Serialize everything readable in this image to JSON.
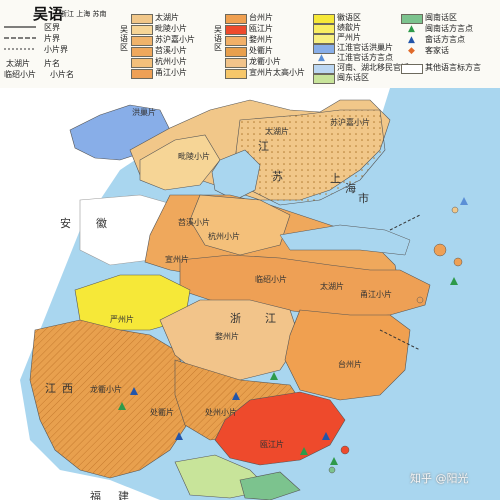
{
  "title": "吴语",
  "subtitle": "浙江 上海 苏南",
  "legend": {
    "line_types": [
      {
        "label": "区界"
      },
      {
        "label": "片界"
      },
      {
        "label": "小片界"
      }
    ],
    "name_types": [
      {
        "label": "太湖片",
        "desc": "片名"
      },
      {
        "label": "临绍小片",
        "desc": "小片名"
      }
    ],
    "group_label": "吴语区",
    "col1": [
      {
        "label": "太湖片",
        "color": "#f1c789"
      },
      {
        "label": "毗陵小片",
        "color": "#f6d596"
      },
      {
        "label": "苏沪嘉小片",
        "color": "#f0b36a"
      },
      {
        "label": "苕溪小片",
        "color": "#efa85c"
      },
      {
        "label": "杭州小片",
        "color": "#f4c07a"
      },
      {
        "label": "甬江小片",
        "color": "#eea055"
      }
    ],
    "col2": [
      {
        "label": "台州片",
        "color": "#f0a050"
      },
      {
        "label": "瓯江片",
        "color": "#ee4a2c"
      },
      {
        "label": "婺州片",
        "color": "#f2b068"
      },
      {
        "label": "处衢片",
        "color": "#e8a04e"
      },
      {
        "label": "龙衢小片",
        "color": "#f2c48a"
      },
      {
        "label": "宣州片太高小片",
        "color": "#f6c76a"
      }
    ],
    "col3": [
      {
        "label": "徽语区",
        "color": "#f6e838"
      },
      {
        "label": "绩歙片",
        "color": "#f9ee62"
      },
      {
        "label": "严州片",
        "color": "#f8f080"
      },
      {
        "label": "江淮官话洪巢片",
        "color": "#88aee8"
      },
      {
        "label": "江淮官话方言点",
        "color": "#a9d3f0"
      },
      {
        "label": "河南、湖北移民官话",
        "color": "#bcd7f2"
      },
      {
        "label": "闽东话区",
        "color": "#c8e49a"
      }
    ],
    "col4": [
      {
        "label": "闽南话区",
        "color": "#7cc38e"
      },
      {
        "label": "闽南话方言点",
        "symbol": "▲",
        "color": "#2e9a4a"
      },
      {
        "label": "畲话方言点",
        "symbol": "▲",
        "color": "#2255aa"
      },
      {
        "label": "客家话",
        "symbol": "◆",
        "color": "#e06a2a"
      },
      {
        "label": "其他语言标方言",
        "color": "#ffffff"
      }
    ],
    "colors": {
      "dialect_line": "#777777",
      "legend_bg": "#fbfaf5"
    }
  },
  "map": {
    "regions": [
      {
        "name": "洪巢片",
        "color": "#88aee8"
      },
      {
        "name": "太湖片",
        "color": "#f1c789"
      },
      {
        "name": "毗陵小片",
        "color": "#f6d596"
      },
      {
        "name": "苏沪嘉小片",
        "color": "#f0b36a"
      },
      {
        "name": "苕溪小片",
        "color": "#efa85c"
      },
      {
        "name": "临绍小片",
        "color": "#eea055"
      },
      {
        "name": "徽语区",
        "color": "#f6e838"
      },
      {
        "name": "婺州片",
        "color": "#f2c48a"
      },
      {
        "name": "台州片",
        "color": "#f0a050"
      },
      {
        "name": "处衢片",
        "color": "#e8a04e"
      },
      {
        "name": "瓯江片",
        "color": "#ee4a2c"
      },
      {
        "name": "闽东话区",
        "color": "#c8e49a"
      },
      {
        "name": "闽南话区",
        "color": "#7cc38e"
      }
    ],
    "labels": {
      "hongchao": "洪巢片",
      "piling": "毗陵小片",
      "taihu": "太湖片",
      "taihu2": "太湖片",
      "suhujia": "苏沪嘉小片",
      "tiaoxi": "苕溪小片",
      "hangzhou": "杭州小片",
      "linshao": "临绍小片",
      "yongjiang": "甬江小片",
      "taizhou": "台州片",
      "wuzhou": "婺州片",
      "chuqu": "处衢片",
      "chuzhou": "处州小片",
      "longqu": "龙衢小片",
      "oujiang": "瓯江片",
      "yanzhou": "严州片",
      "xuanzhou": "宣州片",
      "jiang": "江",
      "su": "苏",
      "shang": "上",
      "hai": "海",
      "shi": "市",
      "an": "安",
      "hui": "徽",
      "zhe": "浙",
      "jiang2": "江",
      "xi": "西",
      "jiangxi": "江",
      "fu": "福",
      "jian": "建"
    },
    "watermark": "知乎 @阳光"
  }
}
